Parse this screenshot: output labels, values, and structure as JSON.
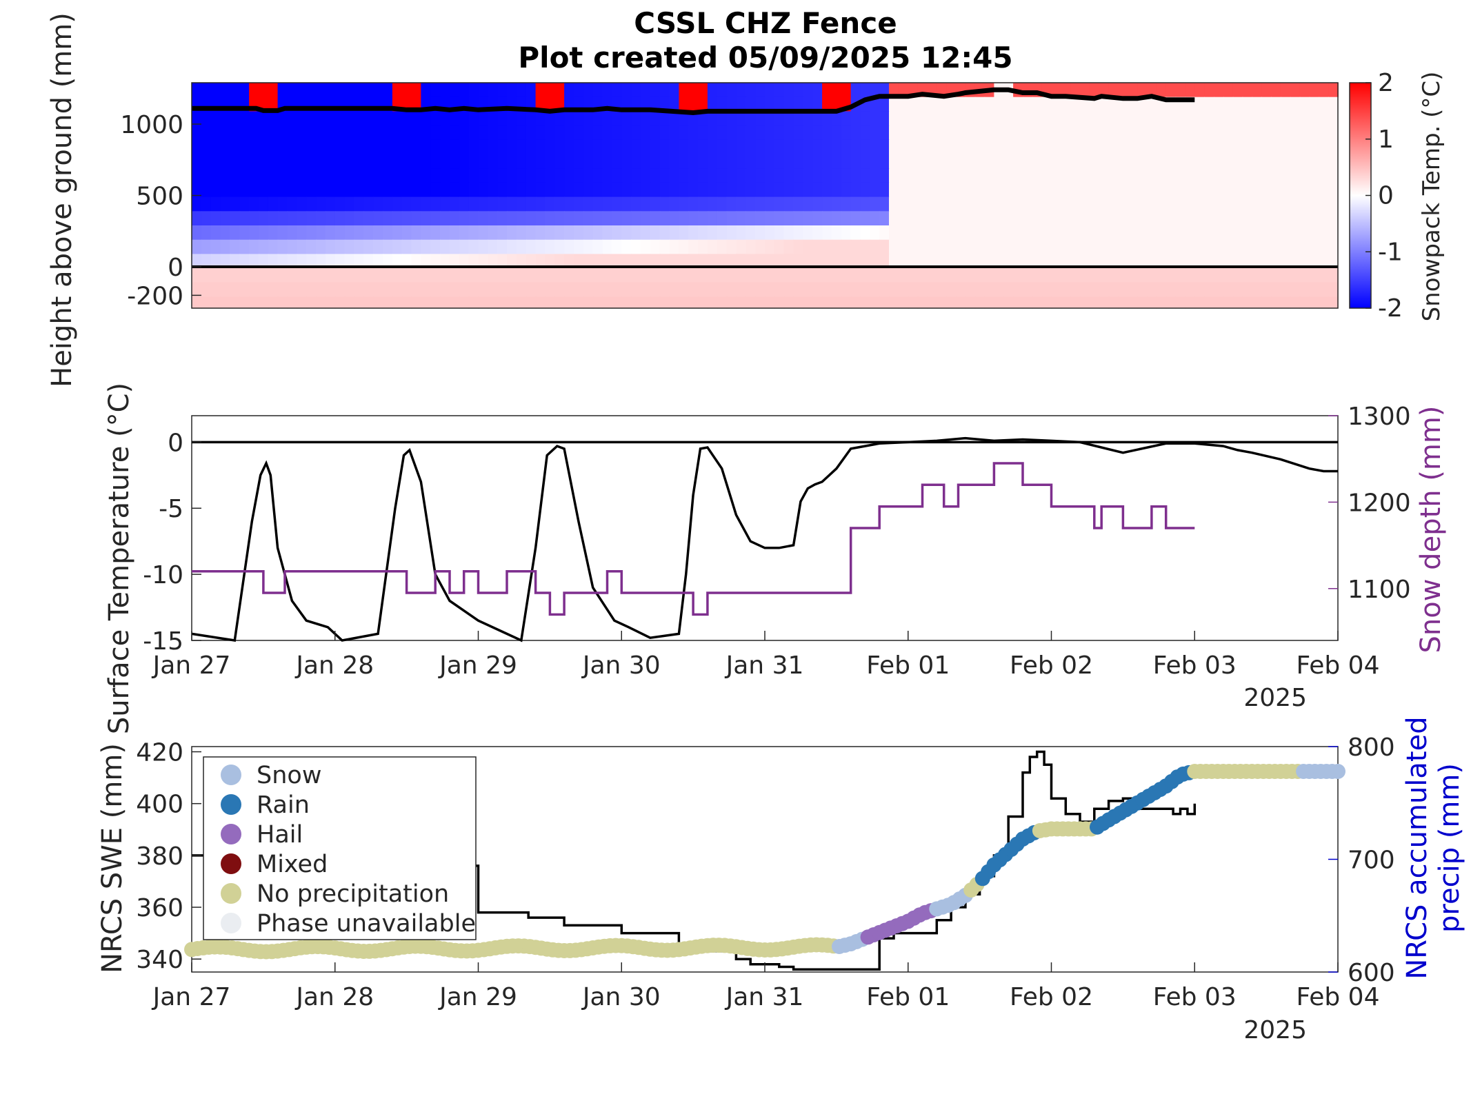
{
  "figure": {
    "title_line1": "CSSL CHZ Fence",
    "title_line2": "Plot created 05/09/2025 12:45"
  },
  "chart_data": [
    {
      "type": "heatmap",
      "panel": "snowpack-temperature",
      "ylabel": "Height above ground (mm)",
      "yticks": [
        -200,
        0,
        500,
        1000
      ],
      "ylim": [
        -290,
        1290
      ],
      "xlim": [
        "2025-01-27",
        "2025-02-04"
      ],
      "colorbar": {
        "label": "Snowpack Temp. (°C)",
        "ticks": [
          -2,
          -1,
          0,
          1,
          2
        ],
        "range": [
          -2,
          2
        ],
        "cold_color": "#0000ff",
        "warm_color": "#ff0000"
      },
      "sensor_heights_mm": [
        1240,
        1140,
        1040,
        940,
        840,
        740,
        640,
        540,
        440,
        340,
        240,
        140,
        40,
        -60,
        -160,
        -260
      ],
      "snow_depth_series": {
        "t_days": [
          0,
          0.45,
          0.5,
          0.6,
          0.65,
          1.4,
          1.5,
          1.6,
          1.7,
          1.8,
          1.9,
          2.0,
          2.2,
          2.4,
          2.5,
          2.6,
          2.8,
          2.9,
          3.0,
          3.2,
          3.5,
          3.6,
          4.5,
          4.6,
          4.7,
          4.8,
          5.0,
          5.1,
          5.25,
          5.35,
          5.4,
          5.6,
          5.7,
          5.8,
          5.9,
          6.0,
          6.1,
          6.3,
          6.35,
          6.5,
          6.6,
          6.7,
          6.8,
          6.9,
          7.0
        ],
        "depth_mm": [
          1110,
          1110,
          1095,
          1095,
          1110,
          1110,
          1100,
          1100,
          1110,
          1100,
          1110,
          1100,
          1110,
          1100,
          1090,
          1100,
          1100,
          1110,
          1100,
          1100,
          1080,
          1090,
          1090,
          1120,
          1170,
          1195,
          1195,
          1210,
          1195,
          1210,
          1220,
          1240,
          1240,
          1220,
          1220,
          1195,
          1195,
          1180,
          1195,
          1180,
          1180,
          1195,
          1170,
          1170,
          1170
        ]
      }
    },
    {
      "type": "line",
      "panel": "surface-temperature",
      "ylabel": "Surface Temperature (°C)",
      "y2label": "Snow depth (mm)",
      "xticks": [
        "Jan 27",
        "Jan 28",
        "Jan 29",
        "Jan 30",
        "Jan 31",
        "Feb 01",
        "Feb 02",
        "Feb 03",
        "Feb 04"
      ],
      "year_label": "2025",
      "ylim": [
        -15,
        2
      ],
      "yticks": [
        -15,
        -10,
        -5,
        0
      ],
      "y2lim": [
        1040,
        1300
      ],
      "y2ticks": [
        1100,
        1200,
        1300
      ],
      "y2_color": "#7e2f8e",
      "series": [
        {
          "color": "#000000",
          "t_days": [
            0,
            0.3,
            0.42,
            0.48,
            0.52,
            0.55,
            0.6,
            0.7,
            0.8,
            0.95,
            1.05,
            1.3,
            1.42,
            1.48,
            1.52,
            1.6,
            1.7,
            1.8,
            2.0,
            2.2,
            2.3,
            2.4,
            2.48,
            2.55,
            2.6,
            2.7,
            2.8,
            2.95,
            3.05,
            3.2,
            3.4,
            3.45,
            3.5,
            3.55,
            3.6,
            3.7,
            3.8,
            3.9,
            4.0,
            4.1,
            4.2,
            4.25,
            4.3,
            4.35,
            4.4,
            4.5,
            4.6,
            4.8,
            5.0,
            5.2,
            5.4,
            5.6,
            5.8,
            6.0,
            6.2,
            6.5,
            6.8,
            7.0,
            7.2,
            7.3,
            7.4,
            7.6,
            7.8,
            7.9,
            8.0
          ],
          "values": [
            -14.5,
            -15,
            -6,
            -2.5,
            -1.6,
            -2.5,
            -8,
            -12,
            -13.5,
            -14,
            -15,
            -14.5,
            -5,
            -1,
            -0.6,
            -3,
            -10,
            -12,
            -13.5,
            -14.5,
            -15,
            -8,
            -1,
            -0.3,
            -0.5,
            -6,
            -11,
            -13.5,
            -14,
            -14.8,
            -14.5,
            -10,
            -4,
            -0.5,
            -0.4,
            -2,
            -5.5,
            -7.5,
            -8,
            -8,
            -7.8,
            -4.5,
            -3.5,
            -3.2,
            -3,
            -2,
            -0.5,
            -0.1,
            0,
            0.1,
            0.3,
            0.1,
            0.2,
            0.1,
            0,
            -0.8,
            -0.1,
            -0.1,
            -0.3,
            -0.6,
            -0.8,
            -1.3,
            -2,
            -2.2,
            -2.2
          ]
        },
        {
          "name": "Snow depth",
          "color": "#7e2f8e",
          "axis": "right",
          "t_days": [
            0,
            0.45,
            0.5,
            0.6,
            0.65,
            1.4,
            1.5,
            1.6,
            1.7,
            1.8,
            1.9,
            2.0,
            2.2,
            2.4,
            2.5,
            2.6,
            2.8,
            2.9,
            3.0,
            3.2,
            3.5,
            3.6,
            4.5,
            4.6,
            4.7,
            4.8,
            5.0,
            5.1,
            5.25,
            5.35,
            5.4,
            5.6,
            5.7,
            5.8,
            5.9,
            6.0,
            6.1,
            6.3,
            6.35,
            6.5,
            6.6,
            6.7,
            6.8,
            6.9,
            7.0
          ],
          "values": [
            1120,
            1120,
            1095,
            1095,
            1120,
            1120,
            1095,
            1095,
            1120,
            1095,
            1120,
            1095,
            1120,
            1095,
            1070,
            1095,
            1095,
            1120,
            1095,
            1095,
            1070,
            1095,
            1095,
            1170,
            1170,
            1195,
            1195,
            1220,
            1195,
            1220,
            1220,
            1245,
            1245,
            1220,
            1220,
            1195,
            1195,
            1170,
            1195,
            1170,
            1170,
            1195,
            1170,
            1170,
            1170
          ]
        }
      ]
    },
    {
      "type": "line",
      "panel": "nrcs",
      "ylabel": "NRCS SWE (mm)",
      "y2label_line1": "NRCS accumulated",
      "y2label_line2": "precip (mm)",
      "xticks": [
        "Jan 27",
        "Jan 28",
        "Jan 29",
        "Jan 30",
        "Jan 31",
        "Feb 01",
        "Feb 02",
        "Feb 03",
        "Feb 04"
      ],
      "year_label": "2025",
      "ylim": [
        335,
        422
      ],
      "yticks": [
        340,
        360,
        380,
        400,
        420
      ],
      "y2lim": [
        600,
        800
      ],
      "y2ticks": [
        600,
        700,
        800
      ],
      "y2_color": "#0000cc",
      "legend": [
        {
          "label": "Snow",
          "color": "#a9bfe0"
        },
        {
          "label": "Rain",
          "color": "#2a77b4"
        },
        {
          "label": "Hail",
          "color": "#946bbd"
        },
        {
          "label": "Mixed",
          "color": "#7f0e10"
        },
        {
          "label": "No precipitation",
          "color": "#d1d196"
        },
        {
          "label": "Phase unavailable",
          "color": "#eaedf1"
        }
      ],
      "swe_series": {
        "color": "#000000",
        "t_days": [
          0,
          0.9,
          0.95,
          1.9,
          2.0,
          2.3,
          2.35,
          2.5,
          2.6,
          2.9,
          3.0,
          3.3,
          3.4,
          3.6,
          3.7,
          3.8,
          3.9,
          4.1,
          4.2,
          4.4,
          4.8,
          4.9,
          5.0,
          5.1,
          5.2,
          5.3,
          5.4,
          5.5,
          5.6,
          5.7,
          5.8,
          5.85,
          5.9,
          5.95,
          6.0,
          6.1,
          6.2,
          6.3,
          6.4,
          6.5,
          6.6,
          6.7,
          6.8,
          6.85,
          6.9,
          6.95,
          7.0
        ],
        "values": [
          380,
          380,
          376,
          376,
          358,
          358,
          356,
          356,
          353,
          353,
          350,
          350,
          343,
          343,
          345,
          340,
          338,
          337,
          336,
          336,
          348,
          350,
          350,
          350,
          355,
          360,
          365,
          372,
          380,
          395,
          412,
          418,
          420,
          415,
          402,
          396,
          393,
          398,
          401,
          402,
          398,
          398,
          398,
          396,
          398,
          396,
          400
        ]
      },
      "precip_series": {
        "note": "accumulated precip colored by phase",
        "t_days": [
          0,
          4.5,
          4.6,
          4.7,
          4.8,
          5.0,
          5.1,
          5.3,
          5.4,
          5.5,
          5.6,
          5.8,
          5.9,
          6.0,
          6.1,
          6.3,
          6.4,
          6.6,
          6.8,
          6.9,
          7.0,
          7.5,
          7.8,
          8.0
        ],
        "values": [
          620,
          622,
          625,
          630,
          635,
          645,
          652,
          660,
          668,
          680,
          695,
          718,
          725,
          727,
          727,
          727,
          735,
          750,
          765,
          775,
          778,
          778,
          778,
          778
        ],
        "phase_segments": [
          {
            "from": 0,
            "to": 4.5,
            "phase": "No precipitation"
          },
          {
            "from": 4.5,
            "to": 4.7,
            "phase": "Snow"
          },
          {
            "from": 4.7,
            "to": 5.2,
            "phase": "Hail"
          },
          {
            "from": 5.2,
            "to": 5.4,
            "phase": "Snow"
          },
          {
            "from": 5.5,
            "to": 5.9,
            "phase": "Rain"
          },
          {
            "from": 6.0,
            "to": 6.3,
            "phase": "No precipitation"
          },
          {
            "from": 6.3,
            "to": 7.0,
            "phase": "Rain"
          },
          {
            "from": 7.0,
            "to": 7.75,
            "phase": "No precipitation"
          },
          {
            "from": 7.75,
            "to": 8.0,
            "phase": "Snow"
          }
        ]
      }
    }
  ]
}
